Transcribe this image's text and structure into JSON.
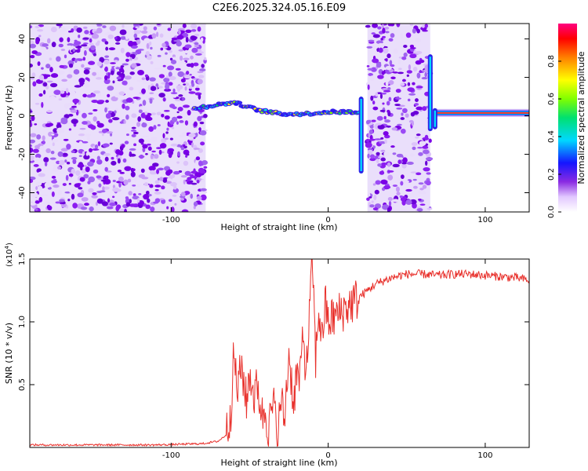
{
  "title": "C2E6.2025.324.05.16.E09",
  "colors": {
    "snr_line": "#e8302b",
    "axis": "#000000",
    "scatter_purple": "#7a00e6",
    "scatter_light": "#d8bff7"
  },
  "colorbar": {
    "label": "Normalized spectral amplitude",
    "ticks": [
      "0.0",
      "0.2",
      "0.4",
      "0.6",
      "0.8"
    ],
    "tick_values": [
      0.0,
      0.2,
      0.4,
      0.6,
      0.8
    ],
    "range": [
      0,
      1
    ]
  },
  "chart_data": [
    {
      "type": "heatmap",
      "name": "spectrogram",
      "xlabel": "Height of straight line (km)",
      "ylabel": "Frequency (Hz)",
      "xlim": [
        -190,
        128
      ],
      "ylim": [
        -50,
        48
      ],
      "x_ticks": [
        -100,
        0,
        100
      ],
      "x_tick_labels": [
        "-100",
        "0",
        "100"
      ],
      "y_ticks": [
        -40,
        -20,
        0,
        20,
        40
      ],
      "y_tick_labels": [
        "-40",
        "-20",
        "0",
        "20",
        "40"
      ],
      "noise_regions": [
        {
          "x_start": -190,
          "x_end": -78
        },
        {
          "x_start": 25,
          "x_end": 65
        }
      ],
      "signal_band": {
        "x": [
          -85,
          -60,
          -45,
          -30,
          -15,
          0,
          20
        ],
        "freq": [
          4,
          7,
          3,
          1,
          1,
          2,
          2
        ],
        "x2": [
          67,
          128
        ],
        "freq2": [
          1.5,
          1.5
        ]
      },
      "transients": [
        {
          "x": 21,
          "freq_min": -30,
          "freq_max": 10
        },
        {
          "x": 65,
          "freq_min": -8,
          "freq_max": 32
        },
        {
          "x": 68,
          "freq_min": -7,
          "freq_max": 4
        }
      ]
    },
    {
      "type": "line",
      "name": "snr",
      "xlabel": "Height of straight line (km)",
      "ylabel": "SNR (10 * v/v)",
      "y_scale_label": "(x10",
      "y_scale_exponent": "4",
      "y_scale_suffix": ")",
      "xlim": [
        -190,
        128
      ],
      "ylim": [
        0,
        1.5
      ],
      "x_ticks": [
        -100,
        0,
        100
      ],
      "x_tick_labels": [
        "-100",
        "0",
        "100"
      ],
      "y_ticks": [
        0.5,
        1.0,
        1.5
      ],
      "y_tick_labels": [
        "0.5",
        "1.0",
        "1.5"
      ],
      "series": [
        {
          "name": "SNR",
          "x": [
            -190,
            -150,
            -110,
            -80,
            -70,
            -65,
            -62,
            -60,
            -58,
            -55,
            -52,
            -50,
            -47,
            -45,
            -42,
            -40,
            -38,
            -35,
            -32,
            -30,
            -28,
            -25,
            -22,
            -20,
            -18,
            -16,
            -14,
            -12,
            -10,
            -8,
            -6,
            -4,
            -2,
            0,
            5,
            10,
            15,
            20,
            30,
            40,
            50,
            60,
            70,
            80,
            90,
            100,
            110,
            120,
            128
          ],
          "values": [
            0.02,
            0.02,
            0.02,
            0.03,
            0.05,
            0.1,
            0.3,
            0.75,
            0.45,
            0.65,
            0.35,
            0.6,
            0.4,
            0.5,
            0.25,
            0.3,
            0.15,
            0.35,
            0.1,
            0.4,
            0.2,
            0.75,
            0.35,
            0.6,
            0.5,
            0.95,
            0.55,
            1.05,
            1.5,
            0.7,
            1.1,
            0.85,
            1.15,
            1.0,
            1.05,
            1.1,
            1.15,
            1.2,
            1.3,
            1.35,
            1.38,
            1.38,
            1.37,
            1.38,
            1.38,
            1.37,
            1.36,
            1.35,
            1.33
          ]
        }
      ]
    }
  ]
}
